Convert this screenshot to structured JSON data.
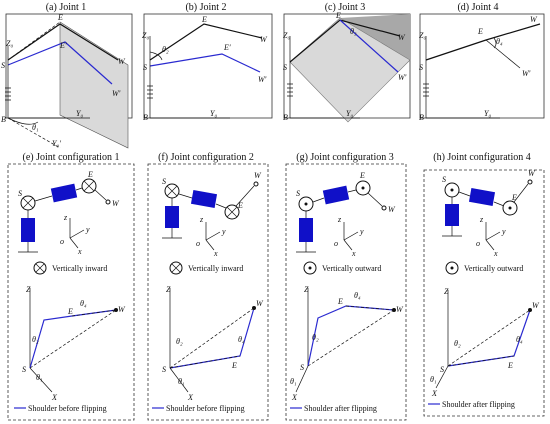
{
  "top_row": [
    {
      "caption": "(a) Joint 1"
    },
    {
      "caption": "(b) Joint 2"
    },
    {
      "caption": "(c) Joint 3"
    },
    {
      "caption": "(d) Joint 4"
    }
  ],
  "point_labels": {
    "E": "E",
    "E_prime": "E′",
    "W": "W",
    "W_prime": "W′",
    "S": "S",
    "B": "B",
    "Z0": "Z₀",
    "Y0": "Y₀",
    "Y0_prime": "Y₀′"
  },
  "angles": {
    "theta1": "θ₁",
    "theta2": "θ₂",
    "theta3": "θ₃",
    "theta4": "θ₄"
  },
  "axes": {
    "z": "z",
    "y": "y",
    "x": "x",
    "o": "o",
    "Z": "Z",
    "X": "X"
  },
  "bottom_row": [
    {
      "caption": "(e) Joint configuration 1",
      "direction": "Vertically inward",
      "legend": "Shoulder before flipping"
    },
    {
      "caption": "(f) Joint configuration 2",
      "direction": "Vertically inward",
      "legend": "Shoulder before flipping"
    },
    {
      "caption": "(g) Joint configuration 3",
      "direction": "Vertically outward",
      "legend": "Shoulder after flipping"
    },
    {
      "caption": "(h) Joint configuration 4",
      "direction": "Vertically outward",
      "legend": "Shoulder after flipping"
    }
  ],
  "colors": {
    "link_blue": "#2a2ad0",
    "joint_blue": "#1010c8",
    "plane_gray": "#d9d9d9"
  }
}
